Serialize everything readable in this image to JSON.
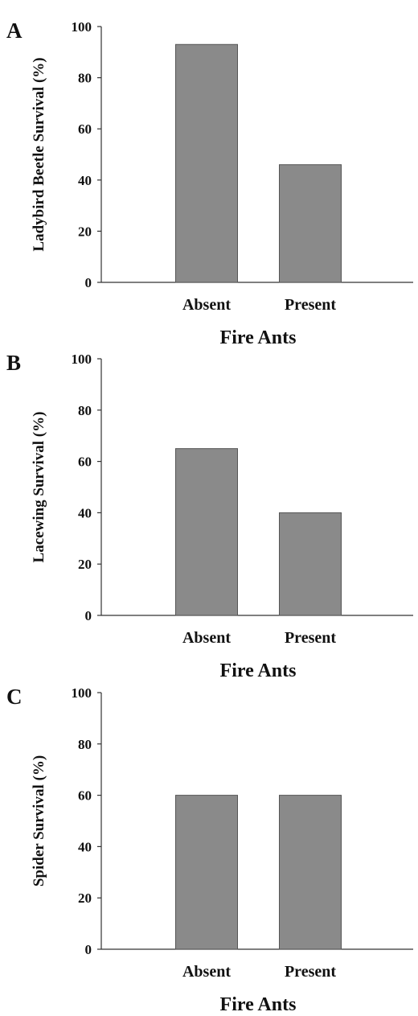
{
  "colors": {
    "bar_fill": "#8a8a8a",
    "bar_stroke": "#555555",
    "axis": "#333333",
    "text": "#111111"
  },
  "chart_data": [
    {
      "type": "bar",
      "panel": "A",
      "categories": [
        "Absent",
        "Present"
      ],
      "values": [
        93,
        46
      ],
      "title": "",
      "xlabel": "Fire Ants",
      "ylabel": "Ladybird Beetle Survival (%)",
      "ylim": [
        0,
        100
      ],
      "yticks": [
        "0",
        "20",
        "40",
        "60",
        "80",
        "100"
      ],
      "grid": false,
      "legend": "none"
    },
    {
      "type": "bar",
      "panel": "B",
      "categories": [
        "Absent",
        "Present"
      ],
      "values": [
        65,
        40
      ],
      "title": "",
      "xlabel": "Fire Ants",
      "ylabel": "Lacewing Survival (%)",
      "ylim": [
        0,
        100
      ],
      "yticks": [
        "0",
        "20",
        "40",
        "60",
        "80",
        "100"
      ],
      "grid": false,
      "legend": "none"
    },
    {
      "type": "bar",
      "panel": "C",
      "categories": [
        "Absent",
        "Present"
      ],
      "values": [
        60,
        60
      ],
      "title": "",
      "xlabel": "Fire Ants",
      "ylabel": "Spider Survival (%)",
      "ylim": [
        0,
        100
      ],
      "yticks": [
        "0",
        "20",
        "40",
        "60",
        "80",
        "100"
      ],
      "grid": false,
      "legend": "none"
    }
  ]
}
